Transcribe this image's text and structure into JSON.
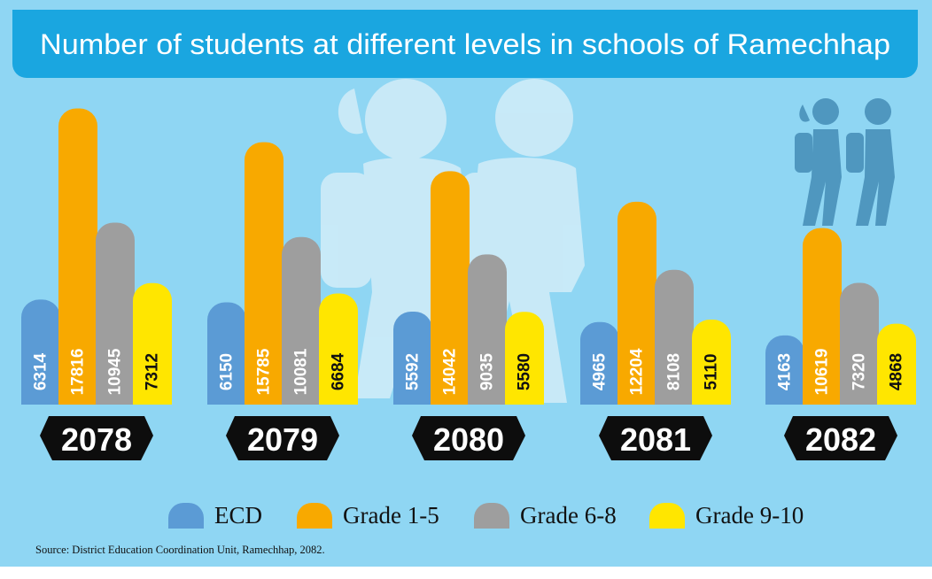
{
  "title": "Number of students at different levels in schools of Ramechhap",
  "source": "Source: District Education Coordination Unit, Ramechhap, 2082.",
  "colors": {
    "background": "#8fd6f3",
    "title_bar": "#1aa6e0",
    "title_text": "#ffffff",
    "label_box": "#0d0d0d",
    "silhouette_light": "#cdebf8",
    "silhouette_dark": "#4f97bf"
  },
  "chart_data": {
    "type": "bar",
    "title": "Number of students at different levels in schools of Ramechhap",
    "categories": [
      "2078",
      "2079",
      "2080",
      "2081",
      "2082"
    ],
    "series": [
      {
        "name": "ECD",
        "color": "#5b9bd5",
        "label_color": "#ffffff",
        "values": [
          6314,
          6150,
          5592,
          4965,
          4163
        ]
      },
      {
        "name": "Grade 1-5",
        "color": "#f8a900",
        "label_color": "#ffffff",
        "values": [
          17816,
          15785,
          14042,
          12204,
          10619
        ]
      },
      {
        "name": "Grade 6-8",
        "color": "#9e9e9e",
        "label_color": "#ffffff",
        "values": [
          10945,
          10081,
          9035,
          8108,
          7320
        ]
      },
      {
        "name": "Grade 9-10",
        "color": "#ffe600",
        "label_color": "#111111",
        "values": [
          7312,
          6684,
          5580,
          5110,
          4868
        ]
      }
    ],
    "legend_position": "bottom",
    "grid": false,
    "xlabel": "",
    "ylabel": "",
    "ylim": [
      0,
      18000
    ]
  }
}
